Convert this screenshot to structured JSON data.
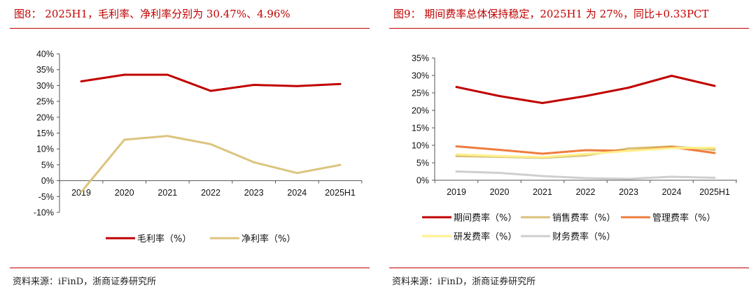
{
  "left": {
    "title": "图8：  2025H1，毛利率、净利率分别为 30.47%、4.96%",
    "source": "资料来源：iFinD，浙商证券研究所"
  },
  "right": {
    "title": "图9：  期间费率总体保持稳定，2025H1 为 27%，同比+0.33PCT",
    "source": "资料来源：iFinD，浙商证券研究所"
  },
  "chart_data": [
    {
      "type": "line",
      "categories": [
        "2019",
        "2020",
        "2021",
        "2022",
        "2023",
        "2024",
        "2025H1"
      ],
      "ylim": [
        -10,
        40
      ],
      "yticks": [
        "40%",
        "35%",
        "30%",
        "25%",
        "20%",
        "15%",
        "10%",
        "5%",
        "0%",
        "-5%",
        "-10%"
      ],
      "legend_position": "bottom",
      "grid": false,
      "series": [
        {
          "name": "毛利率（%）",
          "color": "#c00000",
          "values": [
            31.3,
            33.4,
            33.4,
            28.3,
            30.2,
            29.8,
            30.47
          ]
        },
        {
          "name": "净利率（%）",
          "color": "#dcc47e",
          "values": [
            -3.6,
            12.9,
            14.1,
            11.5,
            5.8,
            2.4,
            4.96
          ]
        }
      ]
    },
    {
      "type": "line",
      "categories": [
        "2019",
        "2020",
        "2021",
        "2022",
        "2023",
        "2024",
        "2025H1"
      ],
      "ylim": [
        0,
        35
      ],
      "yticks": [
        "35%",
        "30%",
        "25%",
        "20%",
        "15%",
        "10%",
        "5%",
        "0%"
      ],
      "legend_position": "bottom",
      "grid": false,
      "series": [
        {
          "name": "期间费率（%）",
          "color": "#c00000",
          "values": [
            26.7,
            24.1,
            22.1,
            24.1,
            26.5,
            29.9,
            27.0
          ]
        },
        {
          "name": "销售费率（%）",
          "color": "#d8c178",
          "values": [
            6.9,
            6.7,
            6.4,
            7.1,
            9.1,
            9.7,
            8.7
          ]
        },
        {
          "name": "管理费率（%）",
          "color": "#ee7d3d",
          "values": [
            9.7,
            8.7,
            7.6,
            8.6,
            8.4,
            9.5,
            7.8
          ]
        },
        {
          "name": "研发费率（%）",
          "color": "#fff08a",
          "values": [
            7.4,
            6.9,
            6.6,
            7.5,
            8.4,
            9.2,
            9.3
          ]
        },
        {
          "name": "财务费率（%）",
          "color": "#cfcfcf",
          "values": [
            2.5,
            2.1,
            1.2,
            0.6,
            0.4,
            1.0,
            0.7
          ]
        }
      ]
    }
  ]
}
